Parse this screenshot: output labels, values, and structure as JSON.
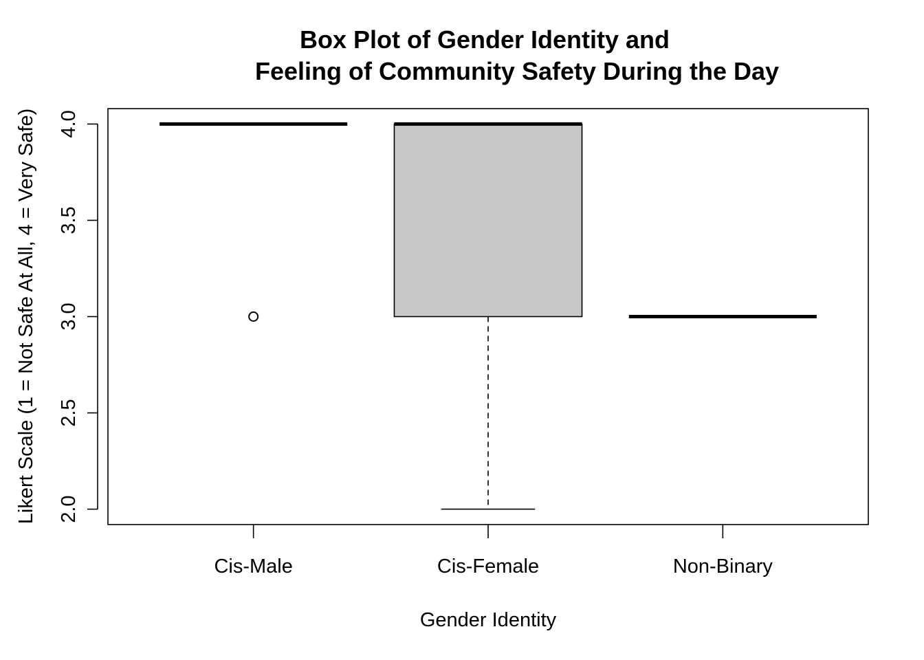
{
  "chart_data": {
    "type": "box",
    "title_line1": "Box Plot of Gender Identity and",
    "title_line2": "Feeling of Community Safety During the Day",
    "xlabel": "Gender Identity",
    "ylabel": "Likert Scale (1 = Not Safe At All, 4 = Very Safe)",
    "categories": [
      "Cis-Male",
      "Cis-Female",
      "Non-Binary"
    ],
    "ylim": [
      1.92,
      4.08
    ],
    "yticks": [
      "2.0",
      "2.5",
      "3.0",
      "3.5",
      "4.0"
    ],
    "grid": false,
    "legend": false,
    "box_fill": "#c8c8c8",
    "boxes": [
      {
        "name": "Cis-Male",
        "whisker_low": 4,
        "q1": 4,
        "median": 4,
        "q3": 4,
        "whisker_high": 4,
        "outliers": [
          3
        ]
      },
      {
        "name": "Cis-Female",
        "whisker_low": 2,
        "q1": 3,
        "median": 4,
        "q3": 4,
        "whisker_high": 4,
        "outliers": []
      },
      {
        "name": "Non-Binary",
        "whisker_low": 3,
        "q1": 3,
        "median": 3,
        "q3": 3,
        "whisker_high": 3,
        "outliers": []
      }
    ]
  }
}
